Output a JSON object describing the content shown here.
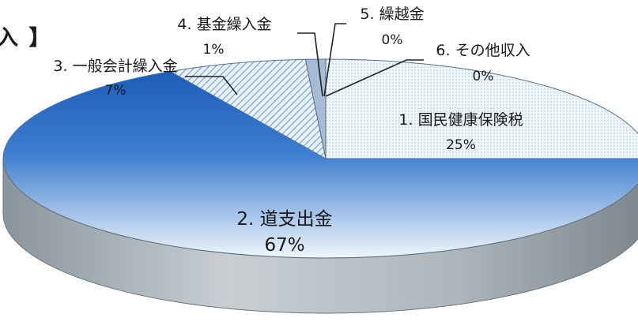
{
  "title_fragment": "入 】",
  "chart_data": {
    "type": "pie",
    "slices": [
      {
        "name": "1. 国民健康保険税",
        "value": 25,
        "label": "25%",
        "color": "#e4f0fa"
      },
      {
        "name": "2. 道支出金",
        "value": 67,
        "label": "67%",
        "color": "#2f6cc2"
      },
      {
        "name": "3. 一般会計繰入金",
        "value": 7,
        "label": "7%",
        "color": "#b7d4ee"
      },
      {
        "name": "4. 基金繰入金",
        "value": 1,
        "label": "1%",
        "color": "#9fb8d6"
      },
      {
        "name": "5. 繰越金",
        "value": 0,
        "label": "0%",
        "color": "#cccccc"
      },
      {
        "name": "6. その他収入",
        "value": 0,
        "label": "0%",
        "color": "#cccccc"
      }
    ]
  }
}
